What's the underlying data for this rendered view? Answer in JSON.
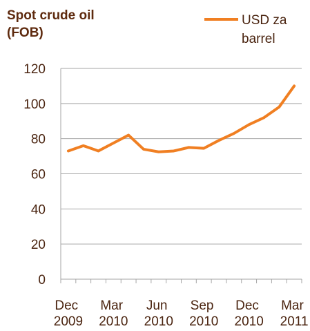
{
  "chart_data": {
    "type": "line",
    "title": "Spot crude oil (FOB)",
    "categories": [
      "Dec 2009",
      null,
      null,
      "Mar 2010",
      null,
      null,
      "Jun 2010",
      null,
      null,
      "Sep 2010",
      null,
      null,
      "Dec 2010",
      null,
      null,
      "Mar 2011"
    ],
    "series": [
      {
        "name": "USD za barrel",
        "color": "#f07f22",
        "values": [
          73,
          76,
          73,
          77.5,
          82,
          74,
          72.5,
          73,
          75,
          74.5,
          79,
          83,
          88,
          92,
          98,
          110
        ]
      }
    ],
    "ylim": [
      0,
      120
    ],
    "yticks": [
      0,
      20,
      40,
      60,
      80,
      100,
      120
    ],
    "grid": true
  }
}
